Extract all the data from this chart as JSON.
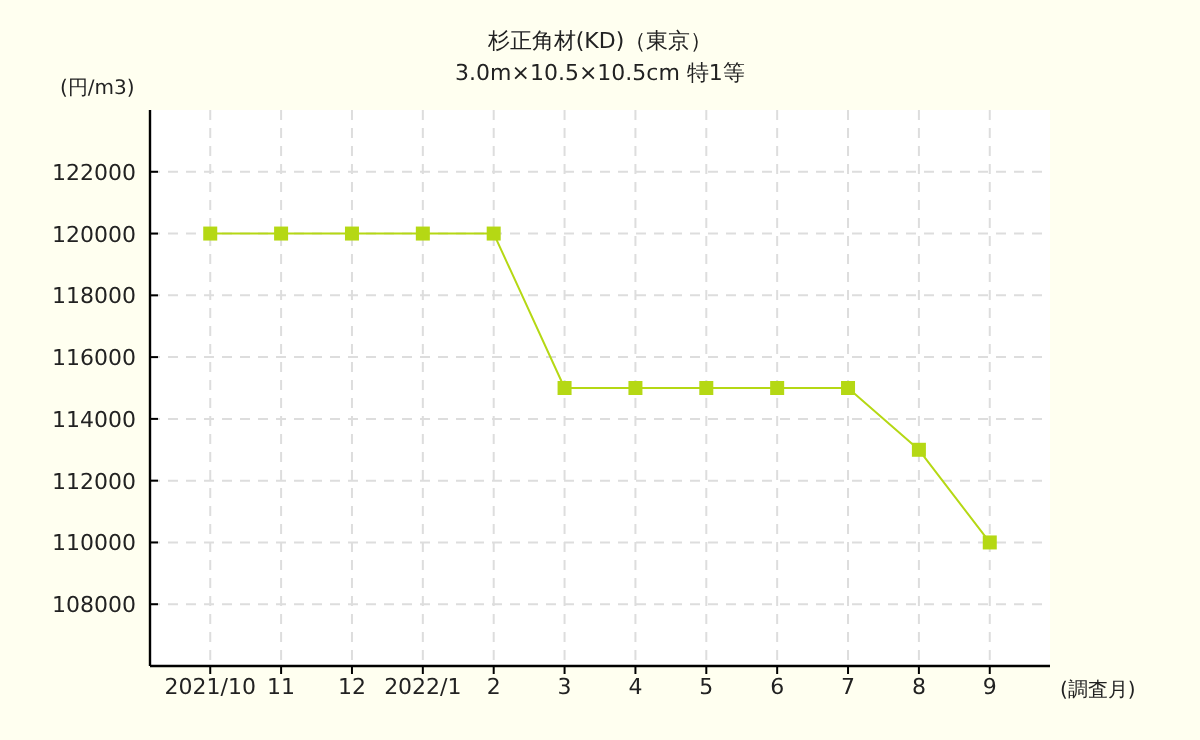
{
  "chart_data": {
    "type": "line",
    "title": "杉正角材(KD)（東京）",
    "subtitle": "3.0m×10.5×10.5cm 特1等",
    "ylabel": "(円/m3)",
    "xlabel": "(調査月)",
    "categories": [
      "2021/10",
      "11",
      "12",
      "2022/1",
      "2",
      "3",
      "4",
      "5",
      "6",
      "7",
      "8",
      "9"
    ],
    "series": [
      {
        "color": "#b5d814",
        "values": [
          120000,
          120000,
          120000,
          120000,
          120000,
          115000,
          115000,
          115000,
          115000,
          115000,
          113000,
          110000
        ]
      }
    ],
    "ylim": [
      106000,
      124000
    ],
    "yticks": [
      108000,
      110000,
      112000,
      114000,
      116000,
      118000,
      120000,
      122000
    ],
    "grid": true,
    "marker": "square",
    "line_style": "solid"
  }
}
